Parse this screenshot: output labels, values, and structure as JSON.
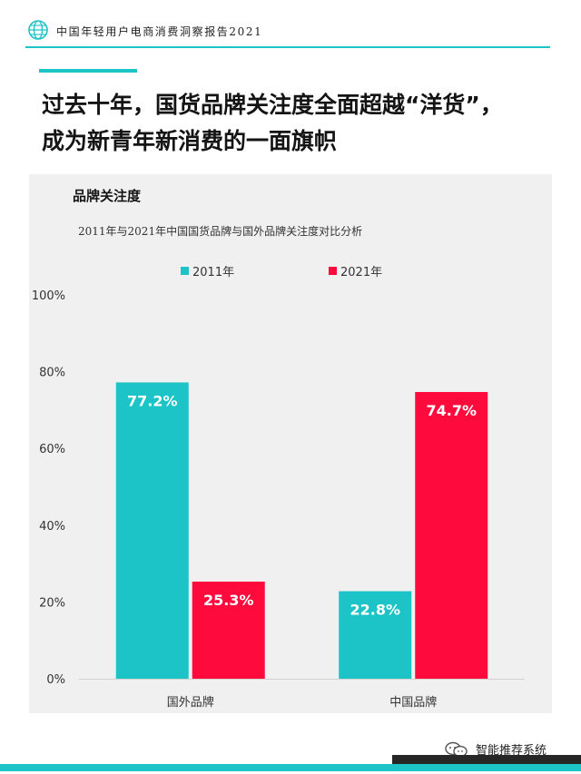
{
  "header": {
    "report_title": "中国年轻用户电商消费洞察报告2021"
  },
  "headline": {
    "line1": "过去十年，国货品牌关注度全面超越“洋货”，",
    "line2": "成为新青年新消费的一面旗帜"
  },
  "chart_section": {
    "title": "品牌关注度",
    "subtitle": "2011年与2021年中国国货品牌与国外品牌关注度对比分析"
  },
  "chart_data": {
    "type": "bar",
    "title": "品牌关注度",
    "subtitle": "2011年与2021年中国国货品牌与国外品牌关注度对比分析",
    "categories": [
      "国外品牌",
      "中国品牌"
    ],
    "series": [
      {
        "name": "2011年",
        "values": [
          77.2,
          22.8
        ],
        "labels": [
          "77.2%",
          "22.8%"
        ],
        "color": "#1cc3c7"
      },
      {
        "name": "2021年",
        "values": [
          25.3,
          74.7
        ],
        "labels": [
          "25.3%",
          "74.7%"
        ],
        "color": "#ff0a3c"
      }
    ],
    "yticks": [
      "0%",
      "20%",
      "40%",
      "60%",
      "80%",
      "100%"
    ],
    "ylim": [
      0,
      100
    ],
    "xlabel": "",
    "ylabel": "",
    "grid": false,
    "legend": "top-center"
  },
  "watermark": {
    "text": "智能推荐系统",
    "icon": "wechat-icon"
  },
  "colors": {
    "accent": "#1cc3c7",
    "red": "#ff0a3c",
    "panel": "#f0f0f0"
  }
}
